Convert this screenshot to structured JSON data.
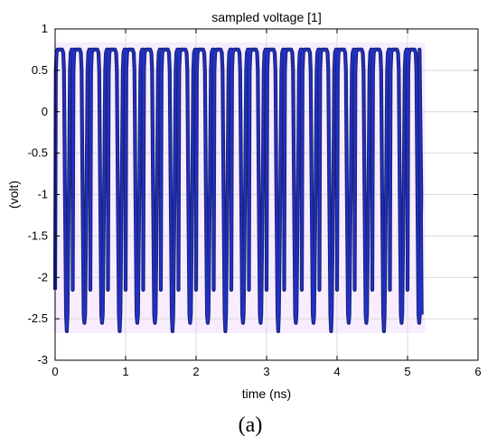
{
  "chart_data": {
    "type": "line",
    "title": "sampled voltage [1]",
    "xlabel": "time (ns)",
    "ylabel": "(volt)",
    "xlim": [
      0,
      6
    ],
    "ylim": [
      -3,
      1
    ],
    "x_ticks": [
      0,
      1,
      2,
      3,
      4,
      5,
      6
    ],
    "y_ticks": [
      1,
      0.5,
      0,
      -0.5,
      -1,
      -1.5,
      -2,
      -2.5,
      -3
    ],
    "grid": true,
    "signal": {
      "start": 0.0,
      "end": 5.2,
      "period": 0.25,
      "high": 0.75,
      "low": -2.55,
      "min_spike": -2.65,
      "cycles": 21
    },
    "colors": {
      "trace_outer": "#1a237e",
      "trace_inner": "#2233cc",
      "grid": "#d9d9d9",
      "axis": "#000000",
      "highlight": "#f6eaff"
    }
  },
  "caption": "(a)"
}
